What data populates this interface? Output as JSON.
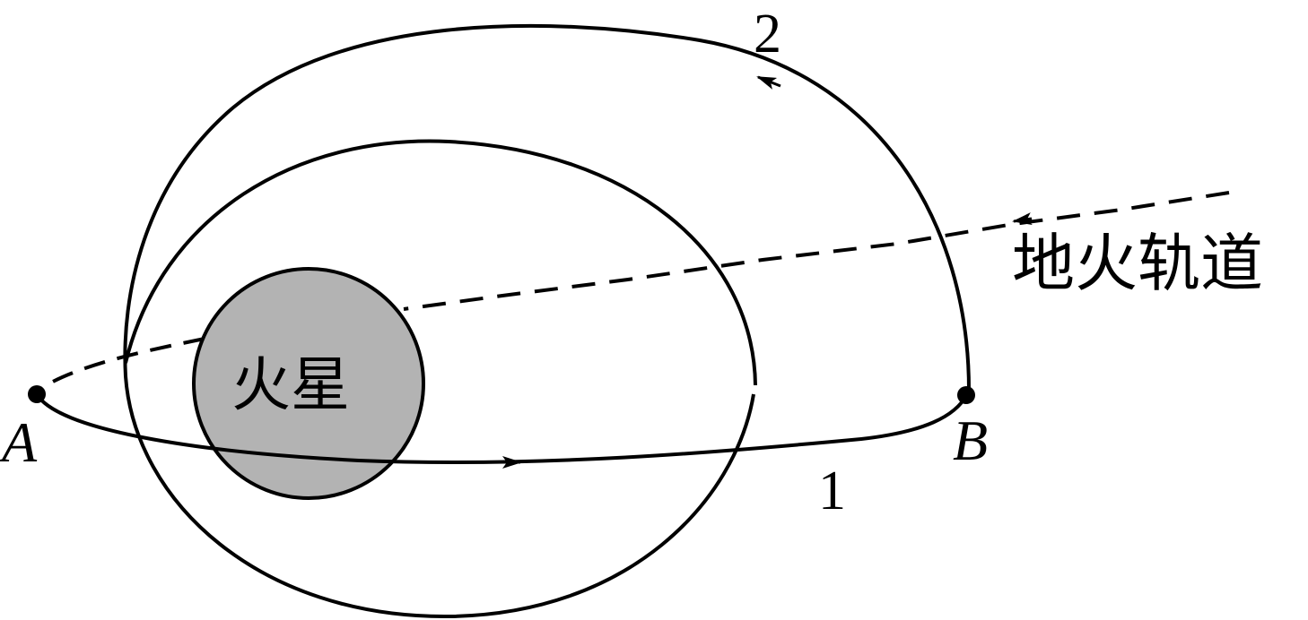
{
  "labels": {
    "point_a": "A",
    "point_b": "B",
    "orbit_1": "1",
    "orbit_2": "2",
    "planet": "火星",
    "transfer_orbit": "地火轨道"
  },
  "colors": {
    "stroke": "#000000",
    "planet_fill": "#b3b3b3",
    "background": "#ffffff"
  }
}
